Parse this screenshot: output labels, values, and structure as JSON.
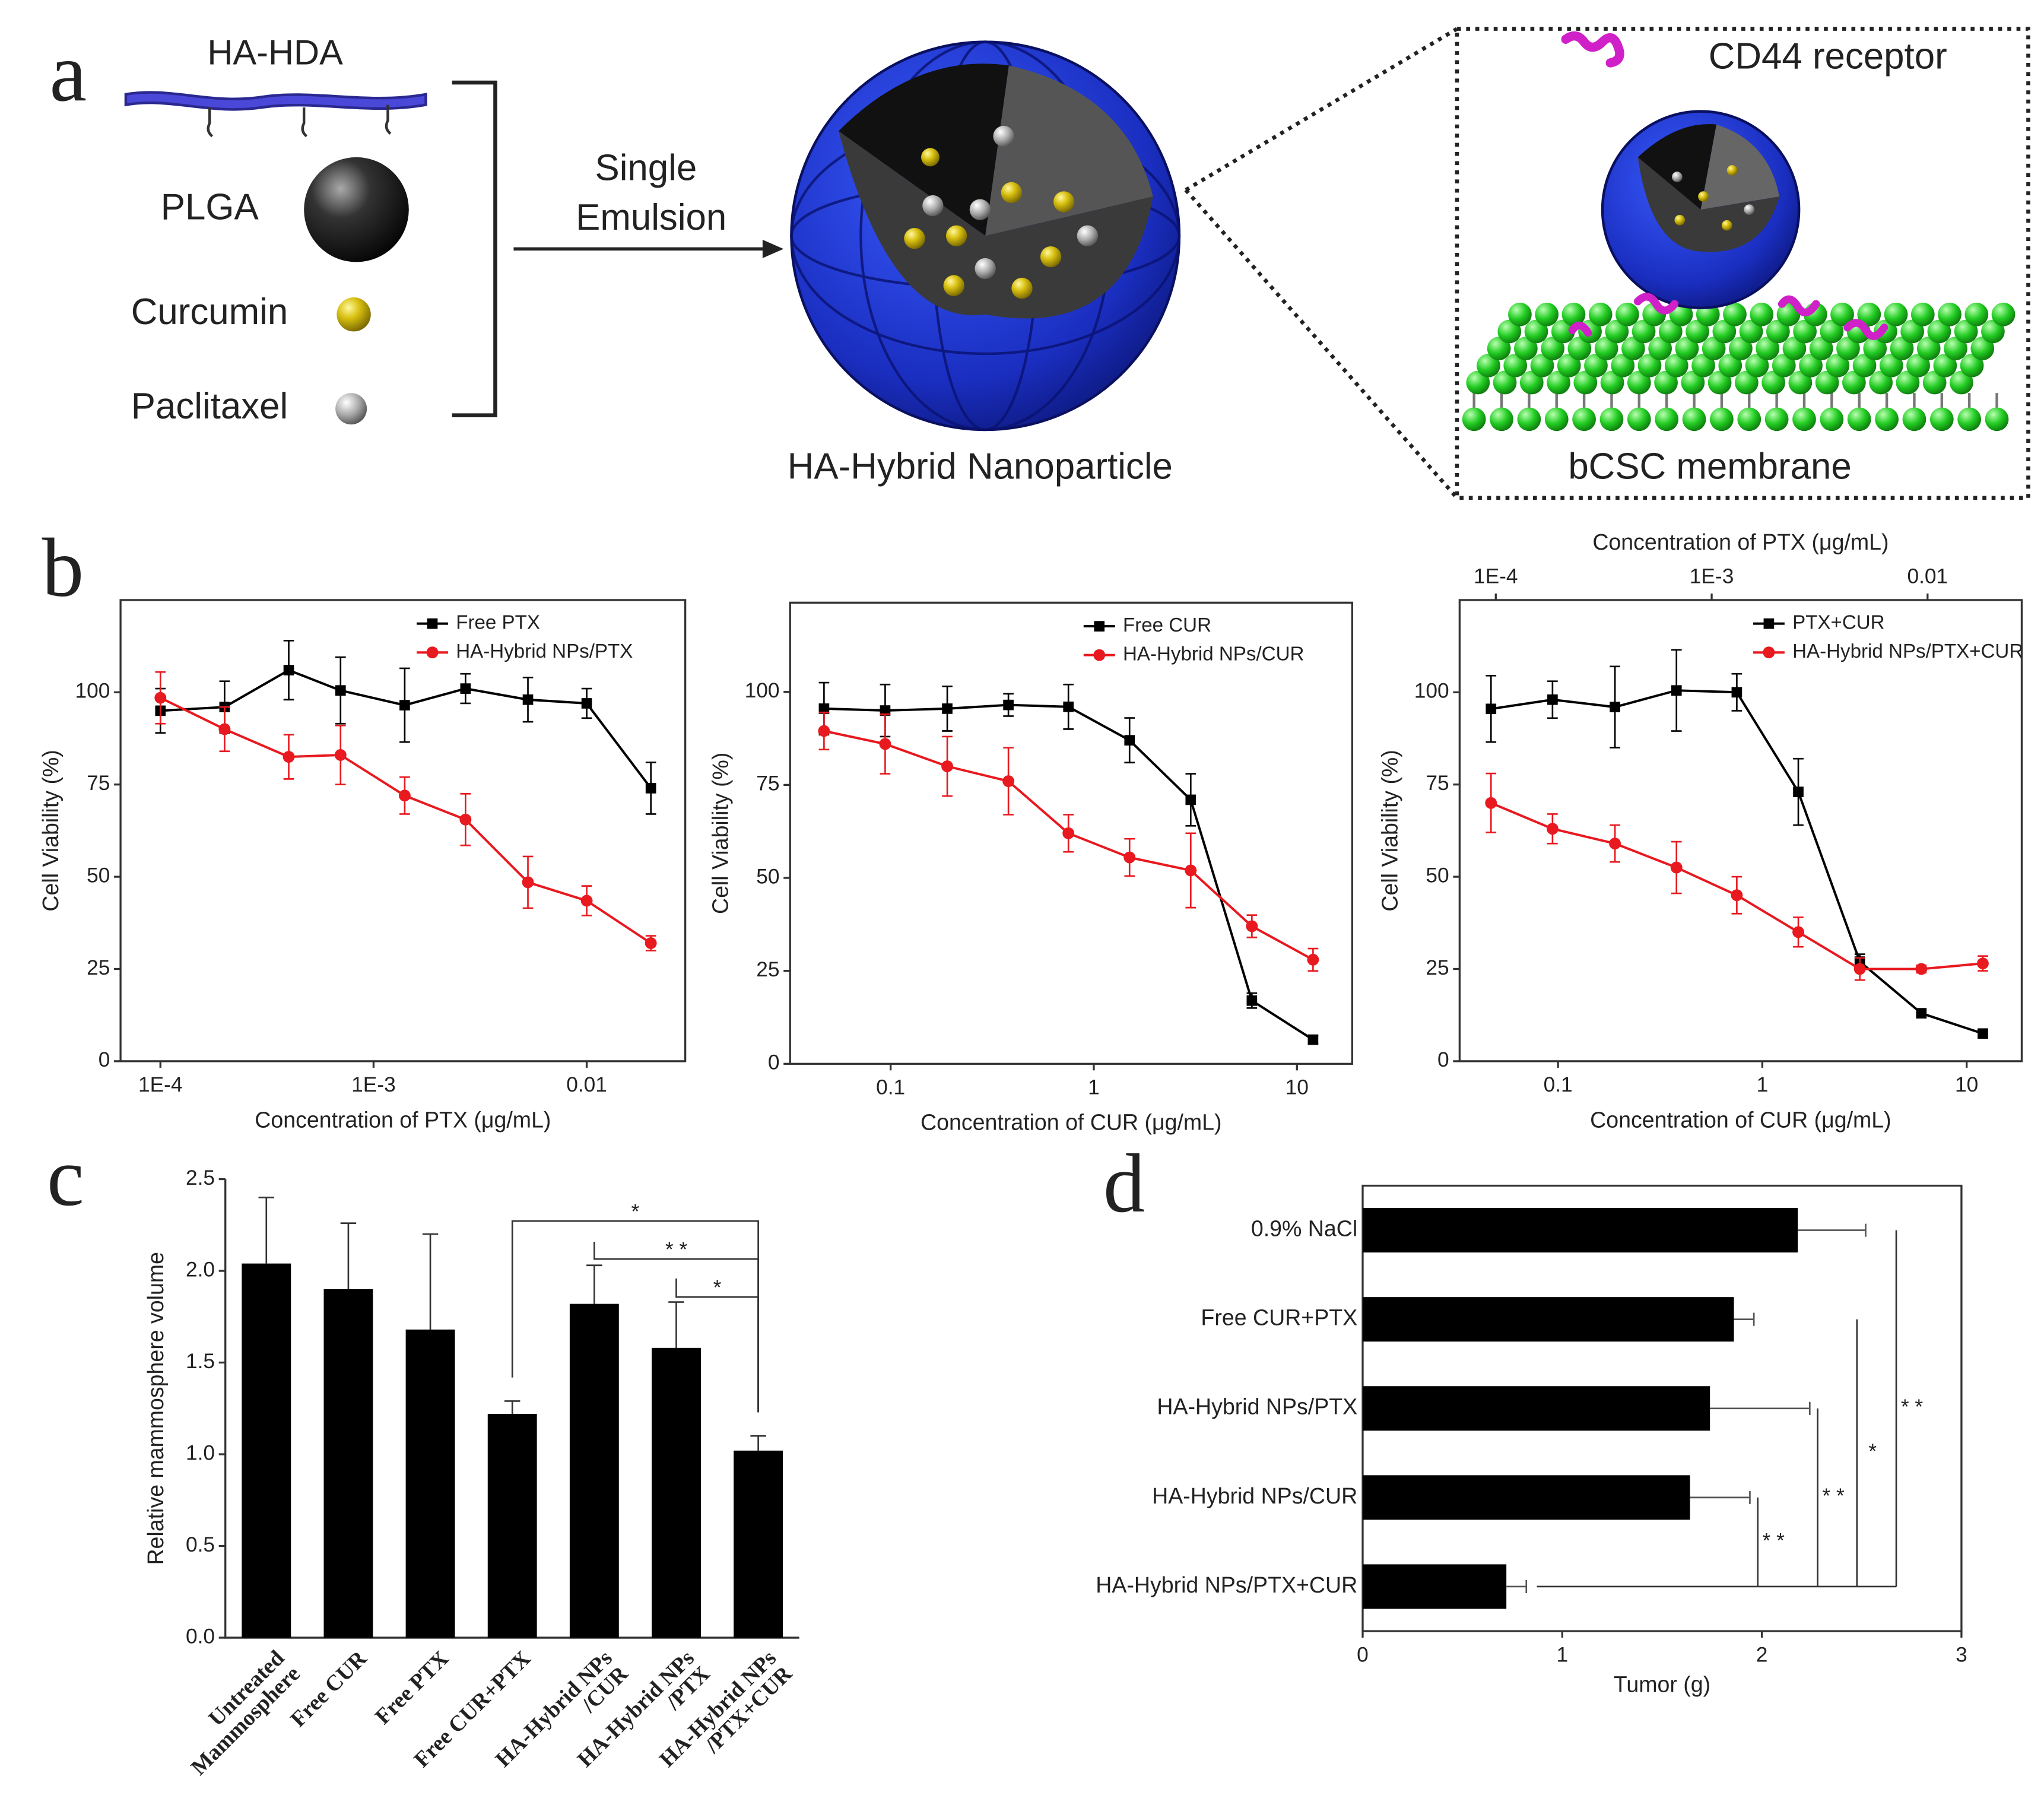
{
  "panel_labels": [
    "a",
    "b",
    "c",
    "d"
  ],
  "panel_a": {
    "components": [
      "HA-HDA",
      "PLGA",
      "Curcumin",
      "Paclitaxel"
    ],
    "process": [
      "Single",
      "Emulsion"
    ],
    "product": "HA-Hybrid Nanoparticle",
    "receptor": "CD44 receptor",
    "membrane": "bCSC membrane"
  },
  "chart_data": [
    {
      "type": "line",
      "x_scale": "log",
      "x": [
        0.0001,
        0.0002,
        0.0004,
        0.0007,
        0.0014,
        0.0027,
        0.0053,
        0.01,
        0.02
      ],
      "xlim": [
        6.5e-05,
        0.029
      ],
      "xticks": [
        {
          "value": 0.0001,
          "label": "1E-4"
        },
        {
          "value": 0.001,
          "label": "1E-3"
        },
        0.01
      ],
      "ylim": [
        0,
        125
      ],
      "yticks": [
        0,
        25,
        50,
        75,
        100
      ],
      "xlabel": "Concentration of PTX (μg/mL)",
      "ylabel": "Cell Viability (%)",
      "legend": "upper right",
      "series": [
        {
          "name": "Free PTX",
          "color": "#000000",
          "marker": "square",
          "values": [
            95,
            96,
            106,
            100.5,
            96.5,
            101,
            98,
            97,
            74
          ],
          "errors": [
            6,
            7,
            8,
            9,
            10,
            4,
            6,
            4,
            7
          ]
        },
        {
          "name": "HA-Hybrid NPs/PTX",
          "color": "#e8191f",
          "marker": "circle",
          "values": [
            98.5,
            90,
            82.5,
            83,
            72,
            65.5,
            48.5,
            43.5,
            32
          ],
          "errors": [
            7,
            6,
            6,
            8,
            5,
            7,
            7,
            4,
            2
          ]
        }
      ]
    },
    {
      "type": "line",
      "x_scale": "log",
      "x": [
        0.047,
        0.094,
        0.19,
        0.38,
        0.75,
        1.5,
        3,
        6,
        12
      ],
      "xlim": [
        0.032,
        18.7
      ],
      "xticks": [
        0.1,
        1,
        10
      ],
      "ylim": [
        0,
        124
      ],
      "yticks": [
        0,
        25,
        50,
        75,
        100
      ],
      "xlabel": "Concentration of CUR (μg/mL)",
      "ylabel": "Cell Viability (%)",
      "legend": "upper right",
      "series": [
        {
          "name": "Free CUR",
          "color": "#000000",
          "marker": "square",
          "values": [
            95.5,
            95,
            95.5,
            96.5,
            96,
            87,
            71,
            17,
            6.5
          ],
          "errors": [
            7,
            7,
            6,
            3,
            6,
            6,
            7,
            2,
            1
          ]
        },
        {
          "name": "HA-Hybrid NPs/CUR",
          "color": "#e8191f",
          "marker": "circle",
          "values": [
            89.5,
            86,
            80,
            76,
            62,
            55.5,
            52,
            37,
            28
          ],
          "errors": [
            5,
            8,
            8,
            9,
            5,
            5,
            10,
            3,
            3
          ]
        }
      ]
    },
    {
      "type": "line",
      "x_scale": "log",
      "x": [
        0.047,
        0.094,
        0.19,
        0.38,
        0.75,
        1.5,
        3,
        6,
        12
      ],
      "xlim": [
        0.033,
        18.6
      ],
      "xticks": [
        0.1,
        1,
        10
      ],
      "x2lim": [
        6.8e-05,
        0.0273
      ],
      "x2ticks": [
        {
          "value": 0.0001,
          "label": "1E-4"
        },
        {
          "value": 0.001,
          "label": "1E-3"
        },
        0.01
      ],
      "ylim": [
        0,
        125
      ],
      "yticks": [
        0,
        25,
        50,
        75,
        100
      ],
      "xlabel": "Concentration of CUR (μg/mL)",
      "x2label": "Concentration of PTX (μg/mL)",
      "ylabel": "Cell Viability (%)",
      "legend": "upper right",
      "series": [
        {
          "name": "PTX+CUR",
          "color": "#000000",
          "marker": "square",
          "values": [
            95.5,
            98,
            96,
            100.5,
            100,
            73,
            27,
            13,
            7.5
          ],
          "errors": [
            9,
            5,
            11,
            11,
            5,
            9,
            2,
            1,
            1
          ]
        },
        {
          "name": "HA-Hybrid NPs/PTX+CUR",
          "color": "#e8191f",
          "marker": "circle",
          "values": [
            70,
            63,
            59,
            52.5,
            45,
            35,
            25,
            25,
            26.5
          ],
          "errors": [
            8,
            4,
            5,
            7,
            5,
            4,
            3,
            1,
            2
          ]
        }
      ]
    },
    {
      "type": "bar",
      "categories": [
        [
          "Untreated",
          "Mammosphere"
        ],
        [
          "Free CUR"
        ],
        [
          "Free PTX"
        ],
        [
          "Free CUR+PTX"
        ],
        [
          "HA-Hybrid NPs",
          "/CUR"
        ],
        [
          "HA-Hybrid NPs",
          "/PTX"
        ],
        [
          "HA-Hybrid NPs",
          "/PTX+CUR"
        ]
      ],
      "values": [
        2.04,
        1.9,
        1.68,
        1.22,
        1.82,
        1.58,
        1.02
      ],
      "errors": [
        0.36,
        0.36,
        0.52,
        0.07,
        0.21,
        0.25,
        0.08
      ],
      "color": "#000000",
      "ylim": [
        0,
        2.5
      ],
      "yticks": [
        {
          "value": 0,
          "label": "0.0"
        },
        0.5,
        {
          "value": 1,
          "label": "1.0"
        },
        1.5,
        {
          "value": 2,
          "label": "2.0"
        },
        2.5
      ],
      "ylabel": "Relative mammosphere volume",
      "significance": [
        {
          "label": "*",
          "compare": [
            3,
            6
          ]
        },
        {
          "label": "* *",
          "compare": [
            4,
            6
          ]
        },
        {
          "label": "*",
          "compare": [
            5,
            6
          ]
        }
      ]
    },
    {
      "type": "hbar",
      "categories": [
        "0.9% NaCl",
        "Free CUR+PTX",
        "HA-Hybrid NPs/PTX",
        "HA-Hybrid NPs/CUR",
        "HA-Hybrid NPs/PTX+CUR"
      ],
      "values": [
        2.18,
        1.86,
        1.74,
        1.64,
        0.72
      ],
      "errors": [
        0.34,
        0.1,
        0.5,
        0.3,
        0.1
      ],
      "color": "#000000",
      "xlim": [
        0,
        3
      ],
      "xticks": [
        0,
        1,
        2,
        3
      ],
      "xlabel": "Tumor (g)",
      "significance": [
        {
          "label": "* *",
          "compare": [
            4,
            3
          ]
        },
        {
          "label": "* *",
          "compare": [
            4,
            2
          ]
        },
        {
          "label": "*",
          "compare": [
            4,
            1
          ]
        },
        {
          "label": "* *",
          "compare": [
            4,
            0
          ]
        }
      ]
    }
  ]
}
